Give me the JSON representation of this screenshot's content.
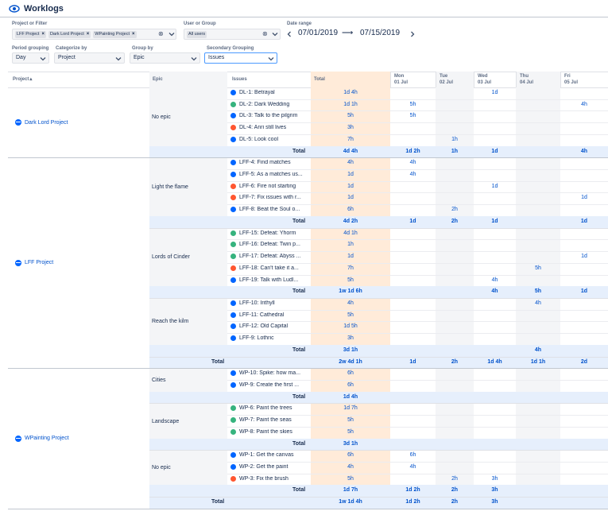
{
  "header": {
    "title": "Worklogs"
  },
  "filters": {
    "project_label": "Project or Filter",
    "project_chips": [
      "LFF Project",
      "Dark Lord Project",
      "WPainting Project"
    ],
    "user_label": "User or Group",
    "user_chips": [
      "All users"
    ],
    "date_label": "Date range",
    "date_from": "07/01/2019",
    "date_arrow": "⟶",
    "date_to": "07/15/2019",
    "period_label": "Period grouping",
    "period_value": "Day",
    "categorize_label": "Categorize by",
    "categorize_value": "Project",
    "group_label": "Group by",
    "group_value": "Epic",
    "secondary_label": "Secondary Grouping",
    "secondary_value": "Issues"
  },
  "table": {
    "col_project": "Project",
    "col_project_sort": "▴",
    "col_epic": "Epic",
    "col_issues": "Issues",
    "col_total": "Total",
    "days": [
      {
        "dow": "Mon",
        "date": "01 Jul",
        "weekend": false
      },
      {
        "dow": "Tue",
        "date": "02 Jul",
        "weekend": true
      },
      {
        "dow": "Wed",
        "date": "03 Jul",
        "weekend": false
      },
      {
        "dow": "Thu",
        "date": "04 Jul",
        "weekend": true
      },
      {
        "dow": "Fri",
        "date": "05 Jul",
        "weekend": false
      }
    ],
    "total_label": "Total",
    "projects": [
      {
        "name": "Dark Lord Project",
        "epics": [
          {
            "name": "No epic",
            "rows": [
              {
                "key": "DL-1: Betrayal",
                "status": "done",
                "total": "1d 4h",
                "days": [
                  "",
                  "",
                  "1d",
                  "",
                  ""
                ]
              },
              {
                "key": "DL-2: Dark Wedding",
                "status": "prog",
                "total": "1d 1h",
                "days": [
                  "5h",
                  "",
                  "",
                  "",
                  "4h"
                ]
              },
              {
                "key": "DL-3: Talk to the pilgrim",
                "status": "done",
                "total": "5h",
                "days": [
                  "5h",
                  "",
                  "",
                  "",
                  ""
                ]
              },
              {
                "key": "DL-4: Anri still lives",
                "status": "todo",
                "total": "3h",
                "days": [
                  "",
                  "",
                  "",
                  "",
                  ""
                ]
              },
              {
                "key": "DL-5: Look cool",
                "status": "done",
                "total": "7h",
                "days": [
                  "",
                  "1h",
                  "",
                  "",
                  ""
                ]
              }
            ],
            "total": "4d 4h",
            "totals": [
              "1d 2h",
              "1h",
              "1d",
              "",
              "4h"
            ]
          }
        ],
        "total": null,
        "totals": null
      },
      {
        "name": "LFF Project",
        "epics": [
          {
            "name": "Light the flame",
            "rows": [
              {
                "key": "LFF-4: Find matches",
                "status": "done",
                "total": "4h",
                "days": [
                  "4h",
                  "",
                  "",
                  "",
                  ""
                ]
              },
              {
                "key": "LFF-5: As a matches us...",
                "status": "done",
                "total": "1d",
                "days": [
                  "4h",
                  "",
                  "",
                  "",
                  ""
                ]
              },
              {
                "key": "LFF-6: Fire not starting",
                "status": "todo",
                "total": "1d",
                "days": [
                  "",
                  "",
                  "1d",
                  "",
                  ""
                ]
              },
              {
                "key": "LFF-7: Fix issues with r...",
                "status": "todo",
                "total": "1d",
                "days": [
                  "",
                  "",
                  "",
                  "",
                  "1d"
                ]
              },
              {
                "key": "LFF-8: Beat the Soul o...",
                "status": "done",
                "total": "6h",
                "days": [
                  "",
                  "2h",
                  "",
                  "",
                  ""
                ]
              }
            ],
            "total": "4d 2h",
            "totals": [
              "1d",
              "2h",
              "1d",
              "",
              "1d"
            ]
          },
          {
            "name": "Lords of Cinder",
            "rows": [
              {
                "key": "LFF-15: Defeat: Yhorm",
                "status": "prog",
                "total": "4d 1h",
                "days": [
                  "",
                  "",
                  "",
                  "",
                  ""
                ]
              },
              {
                "key": "LFF-16: Defeat: Twin p...",
                "status": "prog",
                "total": "1h",
                "days": [
                  "",
                  "",
                  "",
                  "",
                  ""
                ]
              },
              {
                "key": "LFF-17: Defeat: Abyss ...",
                "status": "prog",
                "total": "1d",
                "days": [
                  "",
                  "",
                  "",
                  "",
                  "1d"
                ]
              },
              {
                "key": "LFF-18: Can't take it a...",
                "status": "todo",
                "total": "7h",
                "days": [
                  "",
                  "",
                  "",
                  "5h",
                  ""
                ]
              },
              {
                "key": "LFF-19: Talk with Ludl...",
                "status": "done",
                "total": "5h",
                "days": [
                  "",
                  "",
                  "4h",
                  "",
                  ""
                ]
              }
            ],
            "total": "1w 1d 6h",
            "totals": [
              "",
              "",
              "4h",
              "5h",
              "1d"
            ]
          },
          {
            "name": "Reach the kilm",
            "rows": [
              {
                "key": "LFF-10: Irithyll",
                "status": "done",
                "total": "4h",
                "days": [
                  "",
                  "",
                  "",
                  "4h",
                  ""
                ]
              },
              {
                "key": "LFF-11: Cathedral",
                "status": "done",
                "total": "5h",
                "days": [
                  "",
                  "",
                  "",
                  "",
                  ""
                ]
              },
              {
                "key": "LFF-12: Old Capital",
                "status": "done",
                "total": "1d 5h",
                "days": [
                  "",
                  "",
                  "",
                  "",
                  ""
                ]
              },
              {
                "key": "LFF-9: Lothric",
                "status": "done",
                "total": "3h",
                "days": [
                  "",
                  "",
                  "",
                  "",
                  ""
                ]
              }
            ],
            "total": "3d 1h",
            "totals": [
              "",
              "",
              "",
              "4h",
              ""
            ]
          }
        ],
        "total": "2w 4d 1h",
        "totals": [
          "1d",
          "2h",
          "1d 4h",
          "1d 1h",
          "2d"
        ]
      },
      {
        "name": "WPainting Project",
        "epics": [
          {
            "name": "Cities",
            "rows": [
              {
                "key": "WP-10: Spike: how ma...",
                "status": "done",
                "total": "6h",
                "days": [
                  "",
                  "",
                  "",
                  "",
                  ""
                ]
              },
              {
                "key": "WP-9: Create the first ...",
                "status": "done",
                "total": "6h",
                "days": [
                  "",
                  "",
                  "",
                  "",
                  ""
                ]
              }
            ],
            "total": "1d 4h",
            "totals": [
              "",
              "",
              "",
              "",
              ""
            ]
          },
          {
            "name": "Landscape",
            "rows": [
              {
                "key": "WP-6: Paint the trees",
                "status": "prog",
                "total": "1d 7h",
                "days": [
                  "",
                  "",
                  "",
                  "",
                  ""
                ]
              },
              {
                "key": "WP-7: Paint the seas",
                "status": "prog",
                "total": "5h",
                "days": [
                  "",
                  "",
                  "",
                  "",
                  ""
                ]
              },
              {
                "key": "WP-8: Paint the skies",
                "status": "prog",
                "total": "5h",
                "days": [
                  "",
                  "",
                  "",
                  "",
                  ""
                ]
              }
            ],
            "total": "3d 1h",
            "totals": [
              "",
              "",
              "",
              "",
              ""
            ]
          },
          {
            "name": "No epic",
            "rows": [
              {
                "key": "WP-1: Get the canvas",
                "status": "done",
                "total": "6h",
                "days": [
                  "6h",
                  "",
                  "",
                  "",
                  ""
                ]
              },
              {
                "key": "WP-2: Get the paint",
                "status": "done",
                "total": "4h",
                "days": [
                  "4h",
                  "",
                  "",
                  "",
                  ""
                ]
              },
              {
                "key": "WP-3: Fix the brush",
                "status": "todo",
                "total": "5h",
                "days": [
                  "",
                  "2h",
                  "3h",
                  "",
                  ""
                ]
              }
            ],
            "total": "1d 7h",
            "totals": [
              "1d 2h",
              "2h",
              "3h",
              "",
              ""
            ]
          }
        ],
        "total": "1w 1d 4h",
        "totals": [
          "1d 2h",
          "2h",
          "3h",
          "",
          ""
        ]
      }
    ]
  }
}
